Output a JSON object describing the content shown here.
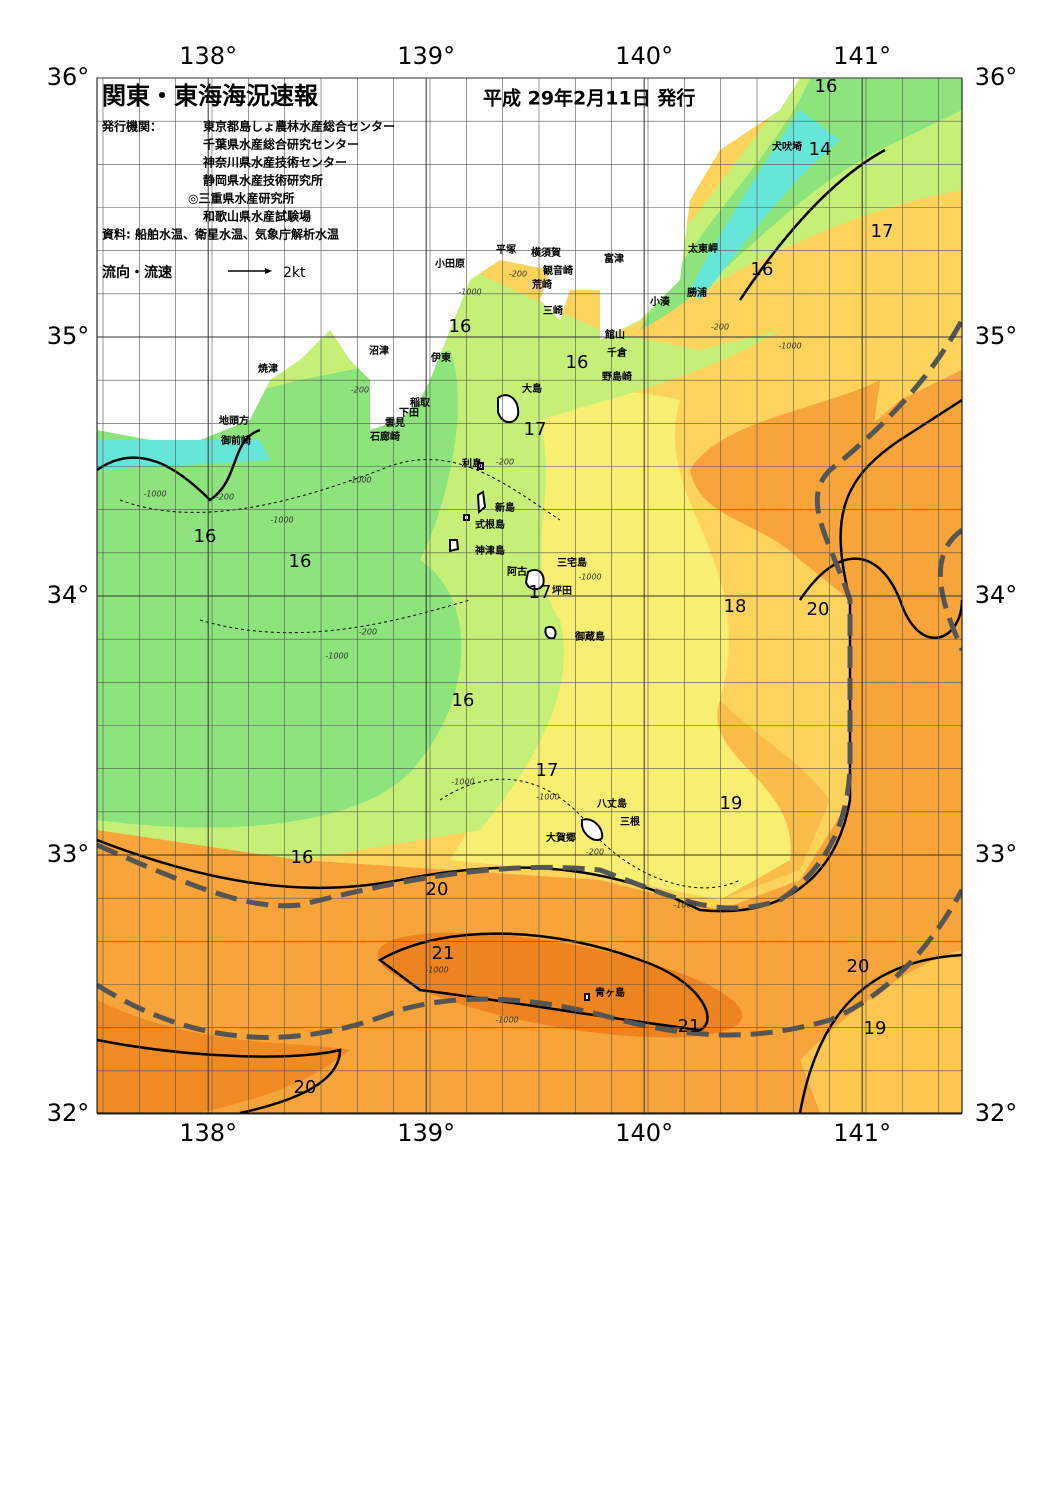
{
  "header": {
    "title": "関東・東海海況速報",
    "date": "平成 29年2月11日 発行",
    "publisher_label": "発行機関：",
    "publishers": [
      "東京都島しょ農林水産総合センター",
      "千葉県水産総合研究センター",
      "神奈川県水産技術センター",
      "静岡県水産技術研究所",
      "◎三重県水産研究所",
      "和歌山県水産試験場"
    ],
    "source": "資料: 船舶水温、衛星水温、気象庁解析水温",
    "flow_label": "流向・流速",
    "flow_scale": "2kt"
  },
  "map": {
    "lon_ticks": [
      {
        "value": 138,
        "label": "138°"
      },
      {
        "value": 139,
        "label": "139°"
      },
      {
        "value": 140,
        "label": "140°"
      },
      {
        "value": 141,
        "label": "141°"
      }
    ],
    "lat_ticks": [
      {
        "value": 32,
        "label": "32°"
      },
      {
        "value": 33,
        "label": "33°"
      },
      {
        "value": 34,
        "label": "34°"
      },
      {
        "value": 35,
        "label": "35°"
      },
      {
        "value": 36,
        "label": "36°"
      }
    ],
    "places": [
      "犬吠埼",
      "太東岬",
      "勝浦",
      "小湊",
      "富津",
      "横須賀",
      "観音崎",
      "平塚",
      "荒崎",
      "小田原",
      "三崎",
      "館山",
      "千倉",
      "野島崎",
      "沼津",
      "伊東",
      "焼津",
      "大島",
      "稲取",
      "下田",
      "雲見",
      "石廊崎",
      "地頭方",
      "御前崎",
      "利島",
      "新島",
      "式根島",
      "神津島",
      "三宅島",
      "阿古",
      "坪田",
      "御蔵島",
      "八丈島",
      "三根",
      "大賀郷",
      "青ヶ島"
    ],
    "contour_labels": [
      16,
      14,
      17,
      16,
      16,
      16,
      17,
      16,
      16,
      17,
      18,
      20,
      16,
      17,
      19,
      16,
      20,
      21,
      20,
      21,
      19,
      20
    ],
    "depth_labels": [
      -1000,
      -200,
      -200,
      -1000,
      -200,
      -200,
      -1000,
      -1000,
      -1000,
      -200,
      -200,
      -1000,
      -1000,
      -1000,
      -200,
      -1000,
      -1000,
      -1000,
      -1000
    ]
  }
}
